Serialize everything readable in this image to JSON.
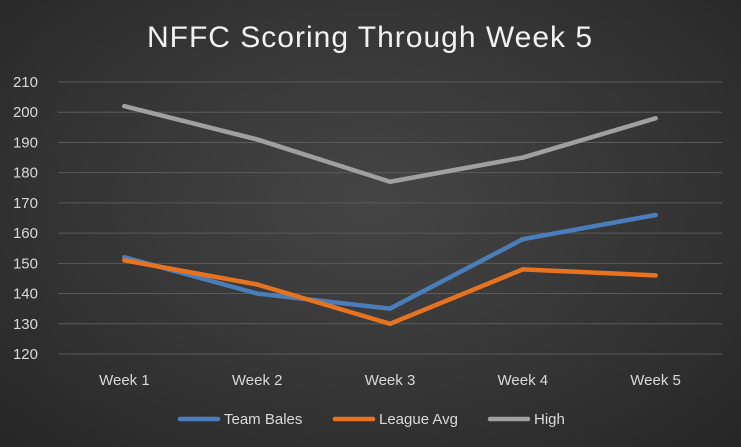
{
  "chart_data": {
    "type": "line",
    "title": "NFFC Scoring Through Week 5",
    "categories": [
      "Week 1",
      "Week 2",
      "Week 3",
      "Week 4",
      "Week 5"
    ],
    "ylim": [
      120,
      210
    ],
    "yticks": [
      120,
      130,
      140,
      150,
      160,
      170,
      180,
      190,
      200,
      210
    ],
    "grid": true,
    "legend_position": "bottom",
    "series": [
      {
        "name": "Team Bales",
        "color": "#4a7ebb",
        "values": [
          152,
          140,
          135,
          158,
          166
        ]
      },
      {
        "name": "League Avg",
        "color": "#e8731f",
        "values": [
          151,
          143,
          130,
          148,
          146
        ]
      },
      {
        "name": "High",
        "color": "#a0a0a0",
        "values": [
          202,
          191,
          177,
          185,
          198
        ]
      }
    ]
  }
}
